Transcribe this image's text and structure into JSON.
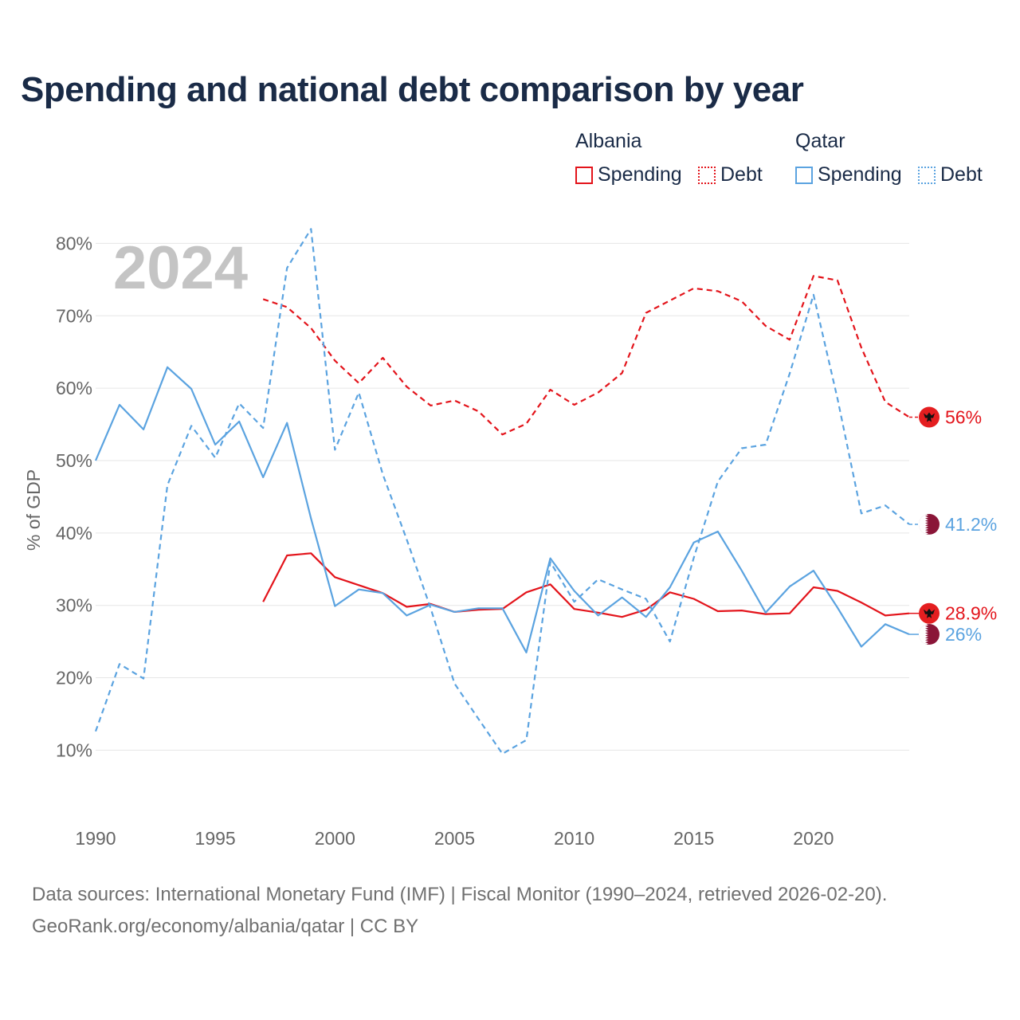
{
  "chart_data": {
    "type": "line",
    "title": "Spending and national debt comparison by year",
    "year_label": "2024",
    "ylabel": "% of GDP",
    "xlabel": "",
    "xlim": [
      1990,
      2024
    ],
    "ylim": [
      3,
      85
    ],
    "x_ticks": [
      1990,
      1995,
      2000,
      2005,
      2010,
      2015,
      2020
    ],
    "y_ticks": [
      10,
      20,
      30,
      40,
      50,
      60,
      70,
      80
    ],
    "y_tick_labels": [
      "10%",
      "20%",
      "30%",
      "40%",
      "50%",
      "60%",
      "70%",
      "80%"
    ],
    "grid": true,
    "legend": {
      "position": "top-right",
      "groups": [
        {
          "country": "Albania",
          "items": [
            {
              "label": "Spending",
              "style": "solid",
              "color": "#e3141b"
            },
            {
              "label": "Debt",
              "style": "dotted",
              "color": "#e3141b"
            }
          ]
        },
        {
          "country": "Qatar",
          "items": [
            {
              "label": "Spending",
              "style": "solid",
              "color": "#5ba3e0"
            },
            {
              "label": "Debt",
              "style": "dotted",
              "color": "#5ba3e0"
            }
          ]
        }
      ]
    },
    "series": [
      {
        "name": "Albania Spending",
        "country": "Albania",
        "kind": "Spending",
        "color": "#e3141b",
        "dashed": false,
        "x": [
          1997,
          1998,
          1999,
          2000,
          2001,
          2002,
          2003,
          2004,
          2005,
          2006,
          2007,
          2008,
          2009,
          2010,
          2011,
          2012,
          2013,
          2014,
          2015,
          2016,
          2017,
          2018,
          2019,
          2020,
          2021,
          2022,
          2023,
          2024
        ],
        "values": [
          30.5,
          36.9,
          37.2,
          33.9,
          32.8,
          31.7,
          29.8,
          30.2,
          29.1,
          29.4,
          29.5,
          31.8,
          32.9,
          29.5,
          29.0,
          28.4,
          29.4,
          31.8,
          30.9,
          29.2,
          29.3,
          28.8,
          28.9,
          32.5,
          32.0,
          30.4,
          28.6,
          28.9
        ],
        "end_label": "28.9%"
      },
      {
        "name": "Albania Debt",
        "country": "Albania",
        "kind": "Debt",
        "color": "#e3141b",
        "dashed": true,
        "x": [
          1997,
          1998,
          1999,
          2000,
          2001,
          2002,
          2003,
          2004,
          2005,
          2006,
          2007,
          2008,
          2009,
          2010,
          2011,
          2012,
          2013,
          2014,
          2015,
          2016,
          2017,
          2018,
          2019,
          2020,
          2021,
          2022,
          2023,
          2024
        ],
        "values": [
          72.3,
          71.2,
          68.3,
          63.8,
          60.7,
          64.2,
          60.2,
          57.6,
          58.3,
          56.8,
          53.6,
          55.1,
          59.8,
          57.7,
          59.4,
          62.1,
          70.4,
          72.1,
          73.8,
          73.4,
          72.0,
          68.6,
          66.7,
          75.5,
          74.9,
          65.6,
          58.1,
          56.0
        ],
        "end_label": "56%"
      },
      {
        "name": "Qatar Spending",
        "country": "Qatar",
        "kind": "Spending",
        "color": "#5ba3e0",
        "dashed": false,
        "x": [
          1990,
          1991,
          1992,
          1993,
          1994,
          1995,
          1996,
          1997,
          1998,
          1999,
          2000,
          2001,
          2002,
          2003,
          2004,
          2005,
          2006,
          2007,
          2008,
          2009,
          2010,
          2011,
          2012,
          2013,
          2014,
          2015,
          2016,
          2017,
          2018,
          2019,
          2020,
          2021,
          2022,
          2023,
          2024
        ],
        "values": [
          50.0,
          57.7,
          54.3,
          62.9,
          59.9,
          52.2,
          55.4,
          47.7,
          55.2,
          42.0,
          29.9,
          32.2,
          31.7,
          28.6,
          30.1,
          29.1,
          29.6,
          29.6,
          23.5,
          36.5,
          32.0,
          28.6,
          31.1,
          28.4,
          32.5,
          38.7,
          40.2,
          34.8,
          29.0,
          32.6,
          34.8,
          29.7,
          24.3,
          27.4,
          26.0
        ],
        "end_label": "26%"
      },
      {
        "name": "Qatar Debt",
        "country": "Qatar",
        "kind": "Debt",
        "color": "#5ba3e0",
        "dashed": true,
        "x": [
          1990,
          1991,
          1992,
          1993,
          1994,
          1995,
          1996,
          1997,
          1998,
          1999,
          2000,
          2001,
          2002,
          2003,
          2004,
          2005,
          2006,
          2007,
          2008,
          2009,
          2010,
          2011,
          2012,
          2013,
          2014,
          2015,
          2016,
          2017,
          2018,
          2019,
          2020,
          2021,
          2022,
          2023,
          2024
        ],
        "values": [
          12.6,
          21.9,
          19.9,
          46.6,
          54.8,
          50.4,
          57.9,
          54.5,
          76.6,
          82.0,
          51.5,
          59.4,
          48.1,
          39.1,
          29.6,
          19.2,
          14.3,
          9.5,
          11.4,
          36.0,
          30.5,
          33.6,
          32.2,
          30.9,
          25.0,
          36.6,
          47.1,
          51.7,
          52.2,
          62.0,
          72.9,
          58.6,
          42.7,
          43.8,
          41.2
        ],
        "end_label": "41.2%"
      }
    ]
  },
  "footer": {
    "source_line": "Data sources: International Monetary Fund (IMF) | Fiscal Monitor (1990–2024, retrieved 2026-02-20).",
    "url_line": "GeoRank.org/economy/albania/qatar | CC BY"
  },
  "icons": {
    "albania": "albania-flag-icon",
    "qatar": "qatar-flag-icon"
  }
}
